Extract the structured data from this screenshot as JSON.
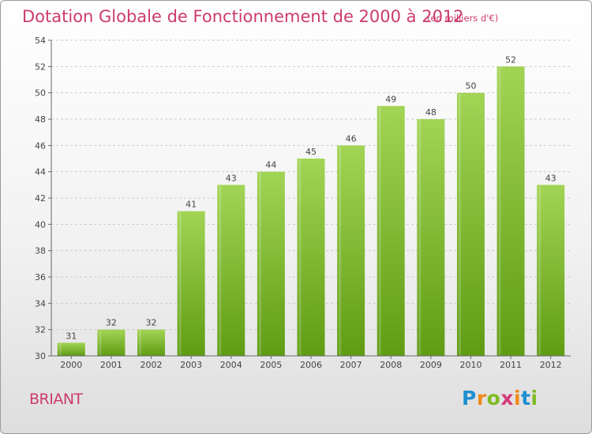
{
  "title": "Dotation Globale de Fonctionnement de 2000 à 2012",
  "subtitle": "(en milliers d'€)",
  "commune": "BRIANT",
  "logo": {
    "letters": [
      "P",
      "r",
      "o",
      "x",
      "i",
      "t",
      "i"
    ],
    "colors": [
      "#1f8fd0",
      "#f08a1c",
      "#7dbb22",
      "#d43a7a",
      "#f08a1c",
      "#1f8fd0",
      "#7dbb22"
    ]
  },
  "chart_data": {
    "type": "bar",
    "categories": [
      "2000",
      "2001",
      "2002",
      "2003",
      "2004",
      "2005",
      "2006",
      "2007",
      "2008",
      "2009",
      "2010",
      "2011",
      "2012"
    ],
    "values": [
      31,
      32,
      32,
      41,
      43,
      44,
      45,
      46,
      49,
      48,
      50,
      52,
      43
    ],
    "ylim": [
      30,
      54
    ],
    "yticks": [
      30,
      32,
      34,
      36,
      38,
      40,
      42,
      44,
      46,
      48,
      50,
      52,
      54
    ],
    "grid": true,
    "colors": {
      "bar_light": "#a2d455",
      "bar_dark": "#5f9c13",
      "grid": "#cccccc",
      "axis": "#666666",
      "label": "#444444"
    }
  }
}
